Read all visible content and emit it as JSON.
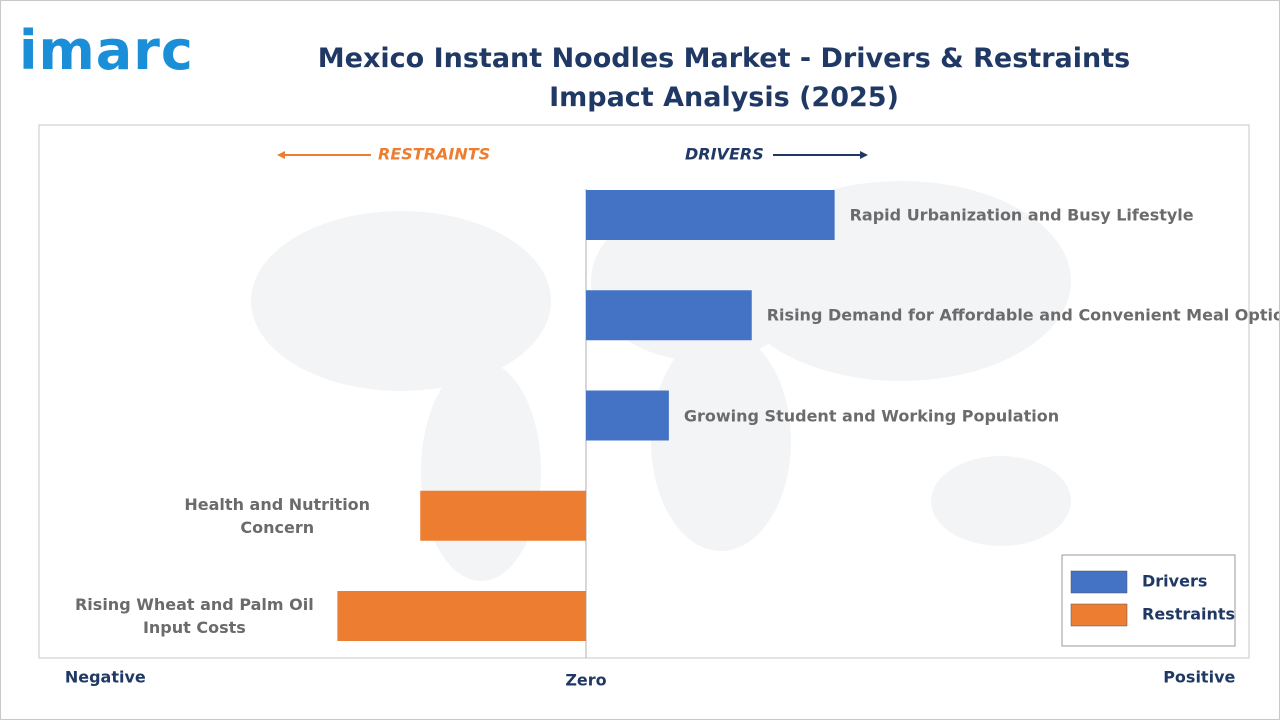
{
  "logo": "imarc",
  "chart_data": {
    "type": "bar",
    "orientation": "horizontal",
    "title": "Mexico Instant Noodles Market - Drivers & Restraints Impact Analysis (2025)",
    "annotations": {
      "restraints": "RESTRAINTS",
      "drivers": "DRIVERS"
    },
    "categories": [
      "Rapid Urbanization and Busy Lifestyle",
      "Rising Demand for Affordable and Convenient Meal Options",
      "Growing Student and Working Population",
      "Health and Nutrition Concern",
      "Rising Wheat and Palm Oil Input Costs"
    ],
    "series": [
      {
        "name": "Drivers",
        "color": "#4472c4",
        "values": [
          3,
          2,
          1,
          null,
          null
        ]
      },
      {
        "name": "Restraints",
        "color": "#ed7d31",
        "values": [
          null,
          null,
          null,
          -2,
          -3
        ]
      }
    ],
    "xlim": [
      -6.6,
      8
    ],
    "xticks": [
      {
        "value": -5.8,
        "label": "Negative"
      },
      {
        "value": 0,
        "label": "Zero"
      },
      {
        "value": 7.4,
        "label": "Positive"
      }
    ],
    "legend": "lower right"
  }
}
